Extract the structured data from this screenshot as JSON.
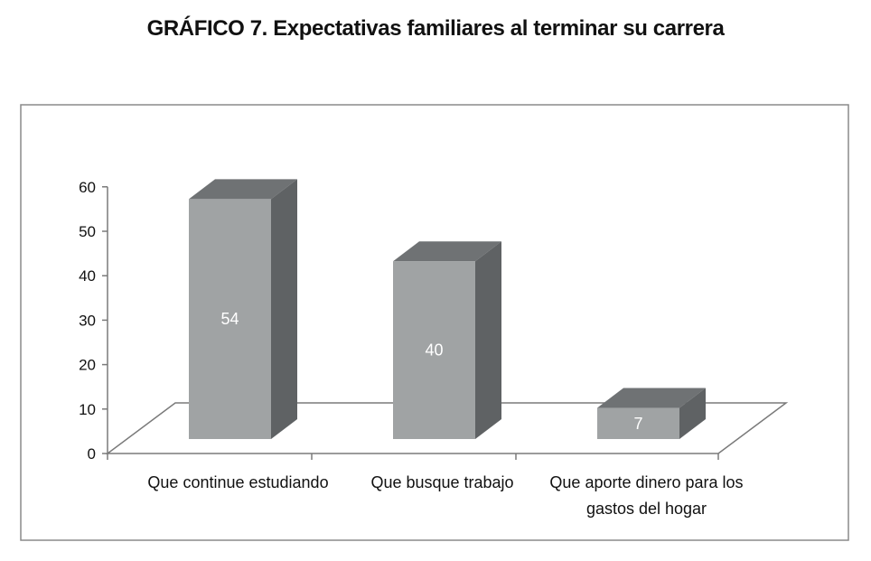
{
  "chart_data": {
    "type": "bar",
    "title": "GRÁFICO 7. Expectativas familiares al terminar su carrera",
    "categories": [
      [
        "Que continue estudiando"
      ],
      [
        "Que busque trabajo"
      ],
      [
        "Que aporte dinero para los",
        "gastos del hogar"
      ]
    ],
    "values": [
      54,
      40,
      7
    ],
    "data_labels": [
      "54",
      "40",
      "7"
    ],
    "ylim": [
      0,
      60
    ],
    "yticks": [
      0,
      10,
      20,
      30,
      40,
      50,
      60
    ],
    "xlabel": "",
    "ylabel": "",
    "grid": false,
    "legend": "none",
    "style": "3d-column",
    "colors": {
      "bar_front": "#a0a3a4",
      "bar_side": "#5f6264",
      "bar_top": "#6f7274",
      "floor": "#ffffff",
      "frame": "#8a8a8a",
      "axis": "#7a7a7a"
    }
  }
}
